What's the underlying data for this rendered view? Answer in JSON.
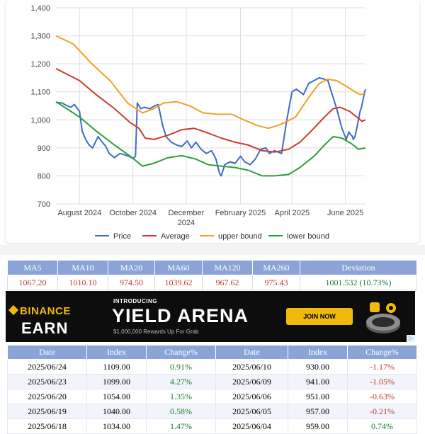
{
  "chart_data": {
    "type": "line",
    "ylim": [
      700,
      1400
    ],
    "yticks": [
      "1,400",
      "1,300",
      "1,200",
      "1,100",
      "1,000",
      "900",
      "800",
      "700"
    ],
    "xticks": [
      {
        "label": "August 2024",
        "date": "2024-08-01"
      },
      {
        "label": "October 2024",
        "date": "2024-10-01"
      },
      {
        "label": "December 2024",
        "date": "2024-12-01"
      },
      {
        "label": "February 2025",
        "date": "2025-02-01"
      },
      {
        "label": "April 2025",
        "date": "2025-04-01"
      },
      {
        "label": "June 2025",
        "date": "2025-06-01"
      }
    ],
    "x_range": [
      "2024-07-05",
      "2025-06-24"
    ],
    "legend_position": "bottom",
    "series": [
      {
        "name": "Price",
        "color": "#3d6cc4",
        "points": [
          [
            "2024-07-05",
            1062
          ],
          [
            "2024-07-12",
            1060
          ],
          [
            "2024-07-18",
            1050
          ],
          [
            "2024-07-22",
            1045
          ],
          [
            "2024-07-26",
            1055
          ],
          [
            "2024-08-01",
            1030
          ],
          [
            "2024-08-04",
            960
          ],
          [
            "2024-08-08",
            930
          ],
          [
            "2024-08-12",
            910
          ],
          [
            "2024-08-16",
            900
          ],
          [
            "2024-08-22",
            940
          ],
          [
            "2024-08-27",
            920
          ],
          [
            "2024-08-31",
            905
          ],
          [
            "2024-09-04",
            880
          ],
          [
            "2024-09-10",
            865
          ],
          [
            "2024-09-16",
            880
          ],
          [
            "2024-09-22",
            875
          ],
          [
            "2024-09-28",
            868
          ],
          [
            "2024-10-01",
            862
          ],
          [
            "2024-10-04",
            870
          ],
          [
            "2024-10-06",
            1060
          ],
          [
            "2024-10-10",
            1040
          ],
          [
            "2024-10-14",
            1045
          ],
          [
            "2024-10-20",
            1040
          ],
          [
            "2024-10-26",
            1050
          ],
          [
            "2024-10-30",
            1055
          ],
          [
            "2024-11-04",
            980
          ],
          [
            "2024-11-08",
            940
          ],
          [
            "2024-11-14",
            920
          ],
          [
            "2024-11-20",
            910
          ],
          [
            "2024-11-26",
            905
          ],
          [
            "2024-12-02",
            925
          ],
          [
            "2024-12-07",
            900
          ],
          [
            "2024-12-12",
            920
          ],
          [
            "2024-12-18",
            895
          ],
          [
            "2024-12-24",
            880
          ],
          [
            "2024-12-30",
            890
          ],
          [
            "2025-01-04",
            860
          ],
          [
            "2025-01-08",
            810
          ],
          [
            "2025-01-10",
            800
          ],
          [
            "2025-01-14",
            840
          ],
          [
            "2025-01-20",
            850
          ],
          [
            "2025-01-26",
            845
          ],
          [
            "2025-02-01",
            870
          ],
          [
            "2025-02-06",
            850
          ],
          [
            "2025-02-12",
            840
          ],
          [
            "2025-02-18",
            860
          ],
          [
            "2025-02-24",
            895
          ],
          [
            "2025-03-02",
            900
          ],
          [
            "2025-03-06",
            880
          ],
          [
            "2025-03-12",
            890
          ],
          [
            "2025-03-20",
            880
          ],
          [
            "2025-03-26",
            1000
          ],
          [
            "2025-04-01",
            1100
          ],
          [
            "2025-04-06",
            1110
          ],
          [
            "2025-04-10",
            1100
          ],
          [
            "2025-04-14",
            1090
          ],
          [
            "2025-04-20",
            1130
          ],
          [
            "2025-04-26",
            1140
          ],
          [
            "2025-05-02",
            1150
          ],
          [
            "2025-05-08",
            1145
          ],
          [
            "2025-05-12",
            1140
          ],
          [
            "2025-05-18",
            1080
          ],
          [
            "2025-05-22",
            1040
          ],
          [
            "2025-05-28",
            970
          ],
          [
            "2025-06-02",
            930
          ],
          [
            "2025-06-05",
            957
          ],
          [
            "2025-06-06",
            951
          ],
          [
            "2025-06-09",
            941
          ],
          [
            "2025-06-10",
            930
          ],
          [
            "2025-06-12",
            940
          ],
          [
            "2025-06-16",
            1000
          ],
          [
            "2025-06-18",
            1034
          ],
          [
            "2025-06-19",
            1040
          ],
          [
            "2025-06-20",
            1054
          ],
          [
            "2025-06-23",
            1099
          ],
          [
            "2025-06-24",
            1109
          ]
        ]
      },
      {
        "name": "Average",
        "color": "#cc3b2e",
        "points": [
          [
            "2024-07-05",
            1183
          ],
          [
            "2024-08-01",
            1140
          ],
          [
            "2024-08-20",
            1090
          ],
          [
            "2024-09-10",
            1040
          ],
          [
            "2024-09-28",
            990
          ],
          [
            "2024-10-08",
            970
          ],
          [
            "2024-10-15",
            935
          ],
          [
            "2024-10-25",
            930
          ],
          [
            "2024-11-10",
            945
          ],
          [
            "2024-11-26",
            965
          ],
          [
            "2024-12-10",
            970
          ],
          [
            "2024-12-24",
            955
          ],
          [
            "2025-01-10",
            935
          ],
          [
            "2025-01-26",
            920
          ],
          [
            "2025-02-10",
            910
          ],
          [
            "2025-02-26",
            890
          ],
          [
            "2025-03-12",
            885
          ],
          [
            "2025-03-28",
            895
          ],
          [
            "2025-04-10",
            920
          ],
          [
            "2025-04-26",
            970
          ],
          [
            "2025-05-08",
            1010
          ],
          [
            "2025-05-18",
            1040
          ],
          [
            "2025-05-26",
            1045
          ],
          [
            "2025-06-06",
            1030
          ],
          [
            "2025-06-14",
            1010
          ],
          [
            "2025-06-20",
            995
          ],
          [
            "2025-06-24",
            1000
          ]
        ]
      },
      {
        "name": "upper bound",
        "color": "#f2a023",
        "points": [
          [
            "2024-07-05",
            1300
          ],
          [
            "2024-07-25",
            1270
          ],
          [
            "2024-08-15",
            1200
          ],
          [
            "2024-09-05",
            1140
          ],
          [
            "2024-09-25",
            1060
          ],
          [
            "2024-10-12",
            1025
          ],
          [
            "2024-10-25",
            1040
          ],
          [
            "2024-11-05",
            1060
          ],
          [
            "2024-11-20",
            1065
          ],
          [
            "2024-12-05",
            1050
          ],
          [
            "2024-12-20",
            1025
          ],
          [
            "2025-01-05",
            1020
          ],
          [
            "2025-01-22",
            1020
          ],
          [
            "2025-02-05",
            1000
          ],
          [
            "2025-02-20",
            980
          ],
          [
            "2025-03-05",
            970
          ],
          [
            "2025-03-20",
            985
          ],
          [
            "2025-04-05",
            1010
          ],
          [
            "2025-04-20",
            1080
          ],
          [
            "2025-05-02",
            1130
          ],
          [
            "2025-05-12",
            1145
          ],
          [
            "2025-05-22",
            1140
          ],
          [
            "2025-06-02",
            1120
          ],
          [
            "2025-06-12",
            1100
          ],
          [
            "2025-06-18",
            1090
          ],
          [
            "2025-06-24",
            1095
          ]
        ]
      },
      {
        "name": "lower bound",
        "color": "#2e9e3a",
        "points": [
          [
            "2024-07-05",
            1065
          ],
          [
            "2024-08-01",
            1010
          ],
          [
            "2024-08-20",
            960
          ],
          [
            "2024-09-10",
            910
          ],
          [
            "2024-09-28",
            870
          ],
          [
            "2024-10-12",
            835
          ],
          [
            "2024-10-25",
            845
          ],
          [
            "2024-11-10",
            865
          ],
          [
            "2024-11-26",
            872
          ],
          [
            "2024-12-12",
            860
          ],
          [
            "2024-12-26",
            840
          ],
          [
            "2025-01-10",
            835
          ],
          [
            "2025-01-26",
            830
          ],
          [
            "2025-02-10",
            820
          ],
          [
            "2025-02-26",
            800
          ],
          [
            "2025-03-12",
            800
          ],
          [
            "2025-03-28",
            805
          ],
          [
            "2025-04-10",
            830
          ],
          [
            "2025-04-26",
            870
          ],
          [
            "2025-05-08",
            910
          ],
          [
            "2025-05-18",
            940
          ],
          [
            "2025-05-28",
            935
          ],
          [
            "2025-06-08",
            915
          ],
          [
            "2025-06-16",
            895
          ],
          [
            "2025-06-24",
            900
          ]
        ]
      }
    ]
  },
  "ma_table": {
    "headers": [
      "MA5",
      "MA10",
      "MA20",
      "MA60",
      "MA120",
      "MA260",
      "Deviation"
    ],
    "values": [
      "1067.20",
      "1010.10",
      "974.50",
      "1039.62",
      "967.62",
      "975.43",
      "1001.532 (10.73%)"
    ]
  },
  "ad": {
    "brand_top": "BINANCE",
    "brand_bottom": "EARN",
    "intro": "INTRODUCING",
    "headline": "YIELD ARENA",
    "subline": "$1,000,000 Rewards Up For Grab",
    "cta": "JOIN NOW",
    "adchoice": "▷",
    "accent": "#f0b90b"
  },
  "data_table": {
    "headers": [
      "Date",
      "Index",
      "Change%",
      "Date",
      "Index",
      "Change%"
    ],
    "rows": [
      {
        "d1": "2025/06/24",
        "i1": "1109.00",
        "c1": "0.91%",
        "s1": "pos",
        "d2": "2025/06/10",
        "i2": "930.00",
        "c2": "-1.17%",
        "s2": "neg"
      },
      {
        "d1": "2025/06/23",
        "i1": "1099.00",
        "c1": "4.27%",
        "s1": "pos",
        "d2": "2025/06/09",
        "i2": "941.00",
        "c2": "-1.05%",
        "s2": "neg"
      },
      {
        "d1": "2025/06/20",
        "i1": "1054.00",
        "c1": "1.35%",
        "s1": "pos",
        "d2": "2025/06/06",
        "i2": "951.00",
        "c2": "-0.63%",
        "s2": "neg"
      },
      {
        "d1": "2025/06/19",
        "i1": "1040.00",
        "c1": "0.58%",
        "s1": "pos",
        "d2": "2025/06/05",
        "i2": "957.00",
        "c2": "-0.21%",
        "s2": "neg"
      },
      {
        "d1": "2025/06/18",
        "i1": "1034.00",
        "c1": "1.47%",
        "s1": "pos",
        "d2": "2025/06/04",
        "i2": "959.00",
        "c2": "0.74%",
        "s2": "pos"
      }
    ]
  }
}
